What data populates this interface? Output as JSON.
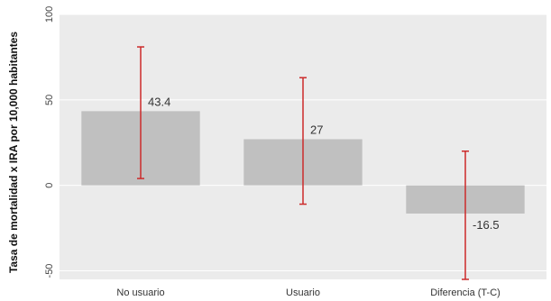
{
  "chart_data": {
    "type": "bar",
    "title": "",
    "xlabel": "",
    "ylabel": "Tasa de mortalidad x IRA por 10,000 habitantes",
    "categories": [
      "No usuario",
      "Usuario",
      "Diferencia (T-C)"
    ],
    "values": [
      43.4,
      27,
      -16.5
    ],
    "data_labels": [
      "43.4",
      "27",
      "-16.5"
    ],
    "error_bars": [
      {
        "low": 4,
        "high": 81
      },
      {
        "low": -11,
        "high": 63
      },
      {
        "low": -55,
        "high": 20
      }
    ],
    "ylim": [
      -55,
      100
    ],
    "yticks": [
      -50,
      0,
      50,
      100
    ],
    "grid": true,
    "colors": {
      "bar": "#c0c0c0",
      "error_bar": "#cc2a2a",
      "plot_background": "#ebebeb",
      "gridline": "#ffffff"
    }
  }
}
